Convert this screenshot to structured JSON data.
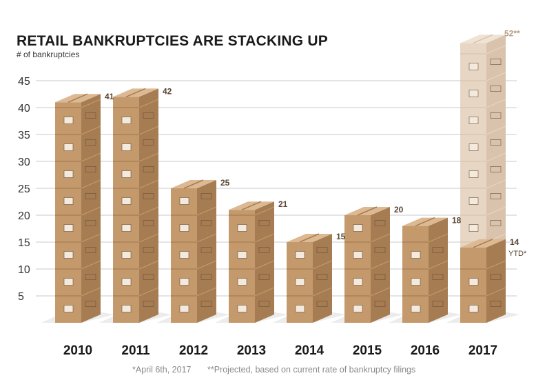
{
  "title": "RETAIL BANKRUPTCIES ARE STACKING UP",
  "subtitle": "# of bankruptcies",
  "footnotes": {
    "ytd": "*April 6th, 2017",
    "projected": "**Projected, based on current rate of bankruptcy filings"
  },
  "colors": {
    "box_front": "#c49a6c",
    "box_side": "#a67c52",
    "box_top": "#dcb992",
    "projected_front": "#e7d6c4",
    "projected_side": "#d9c3ac",
    "projected_top": "#efe3d6",
    "grid": "#c8c8c8",
    "shadow": "#ececec",
    "label": "#5a4633"
  },
  "chart_data": {
    "type": "bar",
    "title": "RETAIL BANKRUPTCIES ARE STACKING UP",
    "ylabel": "# of bankruptcies",
    "xlabel": "",
    "categories": [
      "2010",
      "2011",
      "2012",
      "2013",
      "2014",
      "2015",
      "2016",
      "2017"
    ],
    "values": [
      41,
      42,
      25,
      21,
      15,
      20,
      18,
      14
    ],
    "value_labels": [
      "41",
      "42",
      "25",
      "21",
      "15",
      "20",
      "18",
      "14"
    ],
    "ytd_suffix": "YTD*",
    "projected": {
      "category": "2017",
      "value": 52,
      "label": "52**"
    },
    "ylim": [
      0,
      45
    ],
    "yticks": [
      5,
      10,
      15,
      20,
      25,
      30,
      35,
      40,
      45
    ],
    "grid": true,
    "legend": "none"
  }
}
